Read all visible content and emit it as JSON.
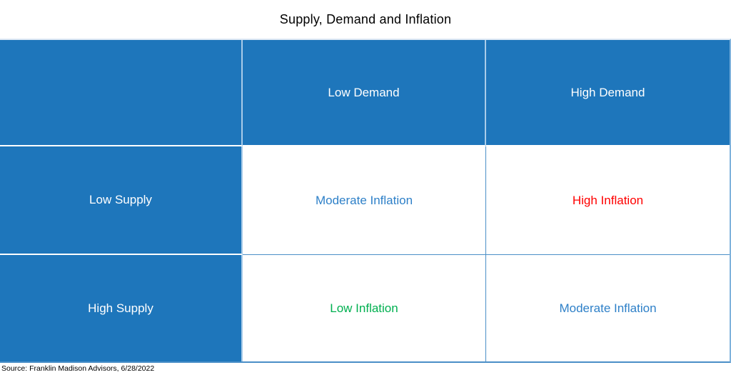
{
  "title": "Supply, Demand and Inflation",
  "source": "Source: Franklin Madison Advisors, 6/28/2022",
  "colors": {
    "cell_fill_blue": "#1E76BB",
    "header_text": "#FFFFFF",
    "inflation_blue": "#2E80C8",
    "inflation_red": "#FF0000",
    "inflation_green": "#00B050",
    "grid_line_blue": "#4A8FC7",
    "light_separator": "#A9CCE9",
    "title_text": "#000000"
  },
  "table": {
    "corner": "",
    "col_headers": [
      "Low Demand",
      "High Demand"
    ],
    "row_headers": [
      "Low Supply",
      "High Supply"
    ],
    "cells": [
      [
        "Moderate Inflation",
        "High Inflation"
      ],
      [
        "Low Inflation",
        "Moderate Inflation"
      ]
    ]
  },
  "chart_data": {
    "type": "table",
    "title": "Supply, Demand and Inflation",
    "columns": [
      "",
      "Low Demand",
      "High Demand"
    ],
    "rows": [
      [
        "Low Supply",
        "Moderate Inflation",
        "High Inflation"
      ],
      [
        "High Supply",
        "Low Inflation",
        "Moderate Inflation"
      ]
    ],
    "cell_text_colors": [
      [
        "#FFFFFF",
        "#2E80C8",
        "#FF0000"
      ],
      [
        "#FFFFFF",
        "#00B050",
        "#2E80C8"
      ]
    ],
    "layout": {
      "header_row_filled": true,
      "header_col_filled": true,
      "fill_color": "#1E76BB",
      "grid": true,
      "legend": "none"
    },
    "source": "Source: Franklin Madison Advisors, 6/28/2022"
  }
}
